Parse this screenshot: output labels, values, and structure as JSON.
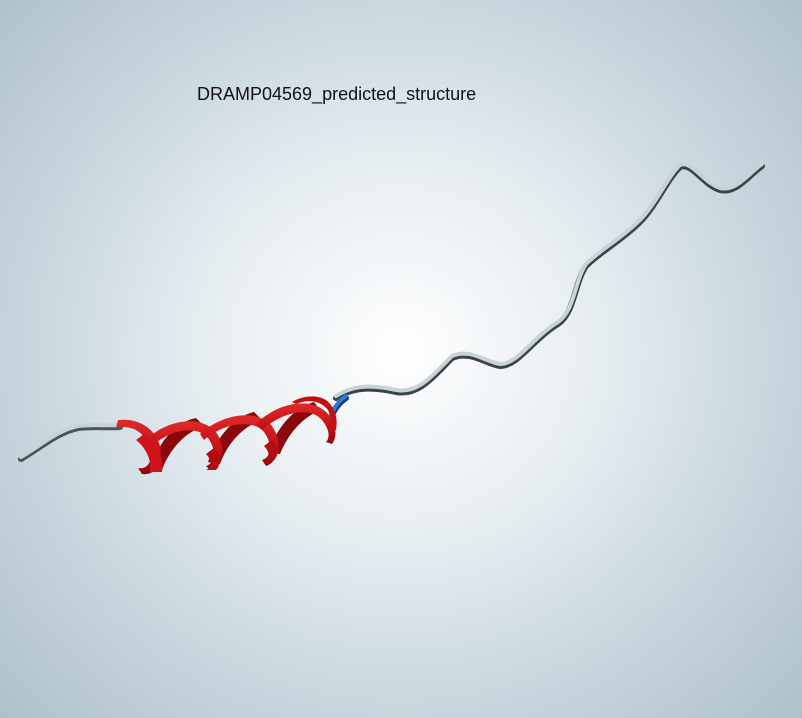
{
  "viewer": {
    "title": "DRAMP04569_predicted_structure"
  },
  "structure": {
    "coil_color": "#c8d3d8",
    "helix_color": "#d0131a",
    "turn_color": "#2a6fc1",
    "helix_turns": 3
  }
}
